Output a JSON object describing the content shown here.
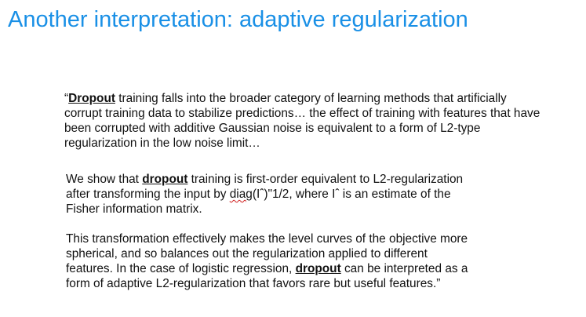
{
  "slide": {
    "title": "Another interpretation: adaptive regularization",
    "accent_color": "#1a90e6"
  },
  "quote": {
    "p1": {
      "open": "“",
      "kw": "Dropout",
      "rest": " training falls into the broader category of learning methods that artificially corrupt training data to stabilize predictions… the effect of training with features that have been corrupted with additive Gaussian noise is equivalent to a form of L2-type regularization in the low noise limit…"
    },
    "p2": {
      "pre": "We show that ",
      "kw": "dropout",
      "mid": " training is first-order equivalent to L2-regularization after transforming the input by ",
      "diag": "diag",
      "post": "(Iˆ)\"1/2, where Iˆ is an estimate of the Fisher information matrix."
    },
    "p3": {
      "pre": "This transformation effectively makes the level curves of the objective more spherical, and so balances out the regularization applied to different features. In the case of logistic regression, ",
      "kw": "dropout",
      "post": " can be interpreted as a form of adaptive L2-regularization that favors rare but useful features.”"
    }
  }
}
